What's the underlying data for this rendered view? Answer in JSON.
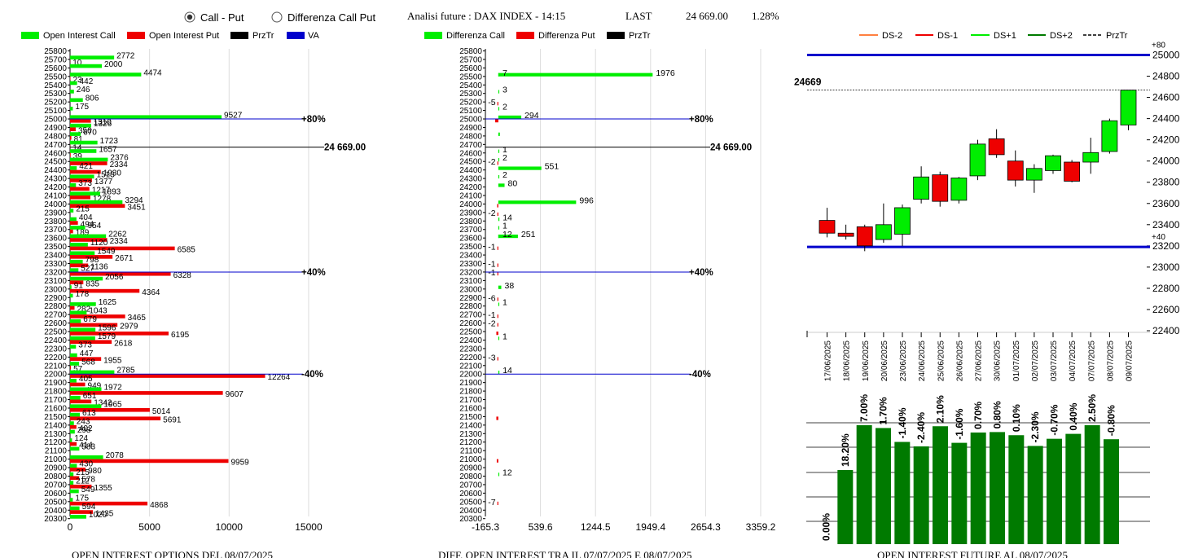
{
  "header": {
    "radio_options": [
      {
        "label": "Call - Put",
        "selected": true
      },
      {
        "label": "Differenza Call Put",
        "selected": false
      }
    ],
    "title": "Analisi future : DAX INDEX - 14:15",
    "last_label": "LAST",
    "last_value": "24 669.00",
    "last_change": "1.28%"
  },
  "colors": {
    "green": "#00ee00",
    "red": "#ee0000",
    "dark_green": "#007a00",
    "blue": "#0000cc",
    "orange": "#ff8040"
  },
  "chart_data": [
    {
      "type": "bar",
      "orientation": "horizontal",
      "title": "OPEN INTEREST OPTIONS DEL 08/07/2025",
      "legend": [
        "Open Interest Call",
        "Open Interest Put",
        "PrzTr",
        "VA"
      ],
      "xlim": [
        0,
        17000
      ],
      "xticks": [
        0,
        5000,
        10000,
        15000
      ],
      "strikes": [
        25800,
        25700,
        25600,
        25500,
        25400,
        25300,
        25200,
        25100,
        25000,
        24900,
        24800,
        24700,
        24600,
        24500,
        24400,
        24300,
        24200,
        24100,
        24000,
        23900,
        23800,
        23700,
        23600,
        23500,
        23400,
        23300,
        23200,
        23100,
        23000,
        22900,
        22800,
        22700,
        22600,
        22500,
        22400,
        22300,
        22200,
        22100,
        22000,
        21900,
        21800,
        21700,
        21600,
        21500,
        21400,
        21300,
        21200,
        21100,
        21000,
        20900,
        20800,
        20700,
        20600,
        20500,
        20400,
        20300
      ],
      "call_values": [
        0,
        2772,
        2000,
        4474,
        442,
        246,
        806,
        175,
        9527,
        1326,
        670,
        1723,
        1657,
        2376,
        421,
        1513,
        373,
        1893,
        3294,
        215,
        404,
        954,
        2262,
        1120,
        1549,
        798,
        527,
        2056,
        91,
        178,
        1625,
        1043,
        679,
        1596,
        1579,
        373,
        447,
        568,
        2785,
        405,
        1972,
        651,
        1965,
        613,
        243,
        298,
        124,
        583,
        2078,
        430,
        215,
        212,
        549,
        175,
        594,
        1020
      ],
      "put_values": [
        0,
        10,
        0,
        23,
        0,
        0,
        0,
        0,
        1310,
        356,
        81,
        14,
        39,
        2334,
        1930,
        1377,
        1217,
        1278,
        3451,
        0,
        494,
        189,
        2334,
        6585,
        2671,
        1136,
        6328,
        835,
        4364,
        0,
        282,
        3465,
        2979,
        6195,
        2618,
        0,
        1955,
        57,
        12264,
        949,
        9607,
        1342,
        5014,
        5691,
        402,
        0,
        414,
        0,
        9959,
        980,
        578,
        1355,
        0,
        4868,
        1435,
        0
      ],
      "reference_lines": [
        {
          "strike": 25000,
          "label": "+80%",
          "color": "blue"
        },
        {
          "strike": 24669,
          "label": "24 669.00",
          "color": "black"
        },
        {
          "strike": 23200,
          "label": "+40%",
          "color": "blue"
        },
        {
          "strike": 22000,
          "label": "-40%",
          "color": "blue"
        }
      ]
    },
    {
      "type": "bar",
      "orientation": "horizontal",
      "title": "DIFF. OPEN INTEREST TRA IL 07/07/2025 E 08/07/2025",
      "legend": [
        "Differenza Call",
        "Differenza Put",
        "PrzTr"
      ],
      "xlim": [
        -165.3,
        3359.2
      ],
      "xticks": [
        -165.3,
        539.6,
        1244.5,
        1949.4,
        2654.3,
        3359.2
      ],
      "strikes": [
        25800,
        25700,
        25600,
        25500,
        25400,
        25300,
        25200,
        25100,
        25000,
        24900,
        24800,
        24700,
        24600,
        24500,
        24400,
        24300,
        24200,
        24100,
        24000,
        23900,
        23800,
        23700,
        23600,
        23500,
        23400,
        23300,
        23200,
        23100,
        23000,
        22900,
        22800,
        22700,
        22600,
        22500,
        22400,
        22300,
        22200,
        22100,
        22000,
        21900,
        21800,
        21700,
        21600,
        21500,
        21400,
        21300,
        21200,
        21100,
        21000,
        20900,
        20800,
        20700,
        20600,
        20500,
        20400,
        20300
      ],
      "values": [
        [
          25500,
          1976,
          "1976"
        ],
        [
          25500,
          7,
          "7"
        ],
        [
          25300,
          3,
          "3"
        ],
        [
          25200,
          -5,
          "-5"
        ],
        [
          25100,
          2,
          "2"
        ],
        [
          25000,
          294,
          "294"
        ],
        [
          25000,
          -40,
          ""
        ],
        [
          24800,
          20,
          ""
        ],
        [
          24600,
          1,
          "1"
        ],
        [
          24500,
          -2,
          "-2"
        ],
        [
          24500,
          2,
          "2"
        ],
        [
          24400,
          551,
          "551"
        ],
        [
          24300,
          2,
          "2"
        ],
        [
          24200,
          80,
          "80"
        ],
        [
          24000,
          996,
          "996"
        ],
        [
          24000,
          -15,
          ""
        ],
        [
          23900,
          -2,
          "-2"
        ],
        [
          23800,
          14,
          "14"
        ],
        [
          23700,
          1,
          "1"
        ],
        [
          23600,
          251,
          "251"
        ],
        [
          23600,
          12,
          "12"
        ],
        [
          23500,
          -1,
          "-1"
        ],
        [
          23300,
          -1,
          "-1"
        ],
        [
          23200,
          -1,
          "-1"
        ],
        [
          23000,
          38,
          "38"
        ],
        [
          22900,
          -6,
          "-6"
        ],
        [
          22800,
          1,
          "1"
        ],
        [
          22700,
          -1,
          "-1"
        ],
        [
          22600,
          -2,
          "-2"
        ],
        [
          22500,
          -25,
          ""
        ],
        [
          22400,
          1,
          "1"
        ],
        [
          22200,
          -3,
          "-3"
        ],
        [
          22000,
          14,
          "14"
        ],
        [
          21500,
          -25,
          ""
        ],
        [
          21000,
          -20,
          ""
        ],
        [
          20800,
          12,
          "12"
        ],
        [
          20500,
          -7,
          "-7"
        ]
      ],
      "reference_lines": [
        {
          "strike": 25000,
          "label": "+80%",
          "color": "blue"
        },
        {
          "strike": 24669,
          "label": "24 669.00",
          "color": "black"
        },
        {
          "strike": 23200,
          "label": "+40%",
          "color": "blue"
        },
        {
          "strike": 22000,
          "label": "-40%",
          "color": "blue"
        }
      ]
    },
    {
      "type": "candlestick",
      "legend": [
        "DS-2",
        "DS-1",
        "DS+1",
        "DS+2",
        "PrzTr"
      ],
      "ylim": [
        22400,
        25000
      ],
      "yticks": [
        22400,
        22600,
        22800,
        23000,
        23200,
        23400,
        23600,
        23800,
        24000,
        24200,
        24400,
        24600,
        24800,
        25000
      ],
      "current_label": "24669",
      "current_value": 24669,
      "upper_band": {
        "value": 25000,
        "label": "+80"
      },
      "lower_band": {
        "value": 23190,
        "label": "+40"
      },
      "dates": [
        "17/06/2025",
        "18/06/2025",
        "19/06/2025",
        "20/06/2025",
        "23/06/2025",
        "24/06/2025",
        "25/06/2025",
        "26/06/2025",
        "27/06/2025",
        "30/06/2025",
        "01/07/2025",
        "02/07/2025",
        "03/07/2025",
        "04/07/2025",
        "07/07/2025",
        "08/07/2025",
        "09/07/2025"
      ],
      "candles": [
        {
          "o": 23440,
          "h": 23560,
          "l": 23280,
          "c": 23320
        },
        {
          "o": 23320,
          "h": 23400,
          "l": 23260,
          "c": 23290
        },
        {
          "o": 23380,
          "h": 23400,
          "l": 23150,
          "c": 23200
        },
        {
          "o": 23260,
          "h": 23600,
          "l": 23230,
          "c": 23400
        },
        {
          "o": 23310,
          "h": 23590,
          "l": 23200,
          "c": 23560
        },
        {
          "o": 23640,
          "h": 23950,
          "l": 23600,
          "c": 23850
        },
        {
          "o": 23870,
          "h": 23900,
          "l": 23570,
          "c": 23620
        },
        {
          "o": 23630,
          "h": 23850,
          "l": 23600,
          "c": 23840
        },
        {
          "o": 23860,
          "h": 24200,
          "l": 23820,
          "c": 24160
        },
        {
          "o": 24210,
          "h": 24300,
          "l": 24030,
          "c": 24060
        },
        {
          "o": 24000,
          "h": 24100,
          "l": 23760,
          "c": 23820
        },
        {
          "o": 23820,
          "h": 23970,
          "l": 23700,
          "c": 23930
        },
        {
          "o": 23910,
          "h": 24060,
          "l": 23880,
          "c": 24050
        },
        {
          "o": 23990,
          "h": 24010,
          "l": 23800,
          "c": 23810
        },
        {
          "o": 23990,
          "h": 24220,
          "l": 23880,
          "c": 24080
        },
        {
          "o": 24090,
          "h": 24400,
          "l": 24070,
          "c": 24380
        },
        {
          "o": 24340,
          "h": 24669,
          "l": 24290,
          "c": 24669
        }
      ]
    },
    {
      "type": "bar",
      "title": "OPEN INTEREST FUTURE AL 08/07/2025",
      "labels": [
        "0.00%",
        "18.20%",
        "7.00%",
        "1.70%",
        "-1.40%",
        "-2.40%",
        "2.10%",
        "-1.60%",
        "0.70%",
        "0.80%",
        "0.10%",
        "-2.30%",
        "-0.70%",
        "0.40%",
        "2.50%",
        "-0.80%"
      ],
      "values": [
        0,
        18.2,
        7.0,
        1.7,
        -1.4,
        -2.4,
        2.1,
        -1.6,
        0.7,
        0.8,
        0.1,
        -2.3,
        -0.7,
        0.4,
        2.5,
        -0.8
      ]
    }
  ]
}
